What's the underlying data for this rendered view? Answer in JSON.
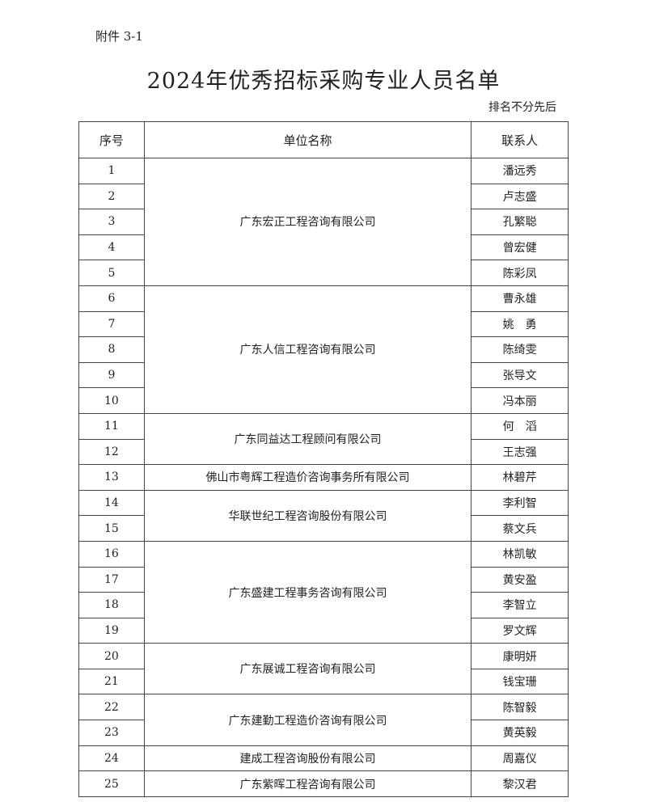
{
  "attachment_label": "附件 3-1",
  "title": "2024年优秀招标采购专业人员名单",
  "note": "排名不分先后",
  "headers": [
    "序号",
    "单位名称",
    "联系人"
  ],
  "groups": [
    {
      "company": "广东宏正工程咨询有限公司",
      "people": [
        [
          "1",
          "潘远秀"
        ],
        [
          "2",
          "卢志盛"
        ],
        [
          "3",
          "孔繁聪"
        ],
        [
          "4",
          "曾宏健"
        ],
        [
          "5",
          "陈彩凤"
        ]
      ]
    },
    {
      "company": "广东人信工程咨询有限公司",
      "people": [
        [
          "6",
          "曹永雄"
        ],
        [
          "7",
          "姚　勇"
        ],
        [
          "8",
          "陈绮雯"
        ],
        [
          "9",
          "张导文"
        ],
        [
          "10",
          "冯本丽"
        ]
      ]
    },
    {
      "company": "广东同益达工程顾问有限公司",
      "people": [
        [
          "11",
          "何　滔"
        ],
        [
          "12",
          "王志强"
        ]
      ]
    },
    {
      "company": "佛山市粤辉工程造价咨询事务所有限公司",
      "people": [
        [
          "13",
          "林碧芹"
        ]
      ]
    },
    {
      "company": "华联世纪工程咨询股份有限公司",
      "people": [
        [
          "14",
          "李利智"
        ],
        [
          "15",
          "蔡文兵"
        ]
      ]
    },
    {
      "company": "广东盛建工程事务咨询有限公司",
      "people": [
        [
          "16",
          "林凯敏"
        ],
        [
          "17",
          "黄安盈"
        ],
        [
          "18",
          "李智立"
        ],
        [
          "19",
          "罗文辉"
        ]
      ]
    },
    {
      "company": "广东展诚工程咨询有限公司",
      "people": [
        [
          "20",
          "康明妍"
        ],
        [
          "21",
          "钱宝珊"
        ]
      ]
    },
    {
      "company": "广东建勤工程造价咨询有限公司",
      "people": [
        [
          "22",
          "陈智毅"
        ],
        [
          "23",
          "黄英毅"
        ]
      ]
    },
    {
      "company": "建成工程咨询股份有限公司",
      "people": [
        [
          "24",
          "周嘉仪"
        ]
      ]
    },
    {
      "company": "广东紫晖工程咨询有限公司",
      "people": [
        [
          "25",
          "黎汉君"
        ]
      ]
    }
  ]
}
